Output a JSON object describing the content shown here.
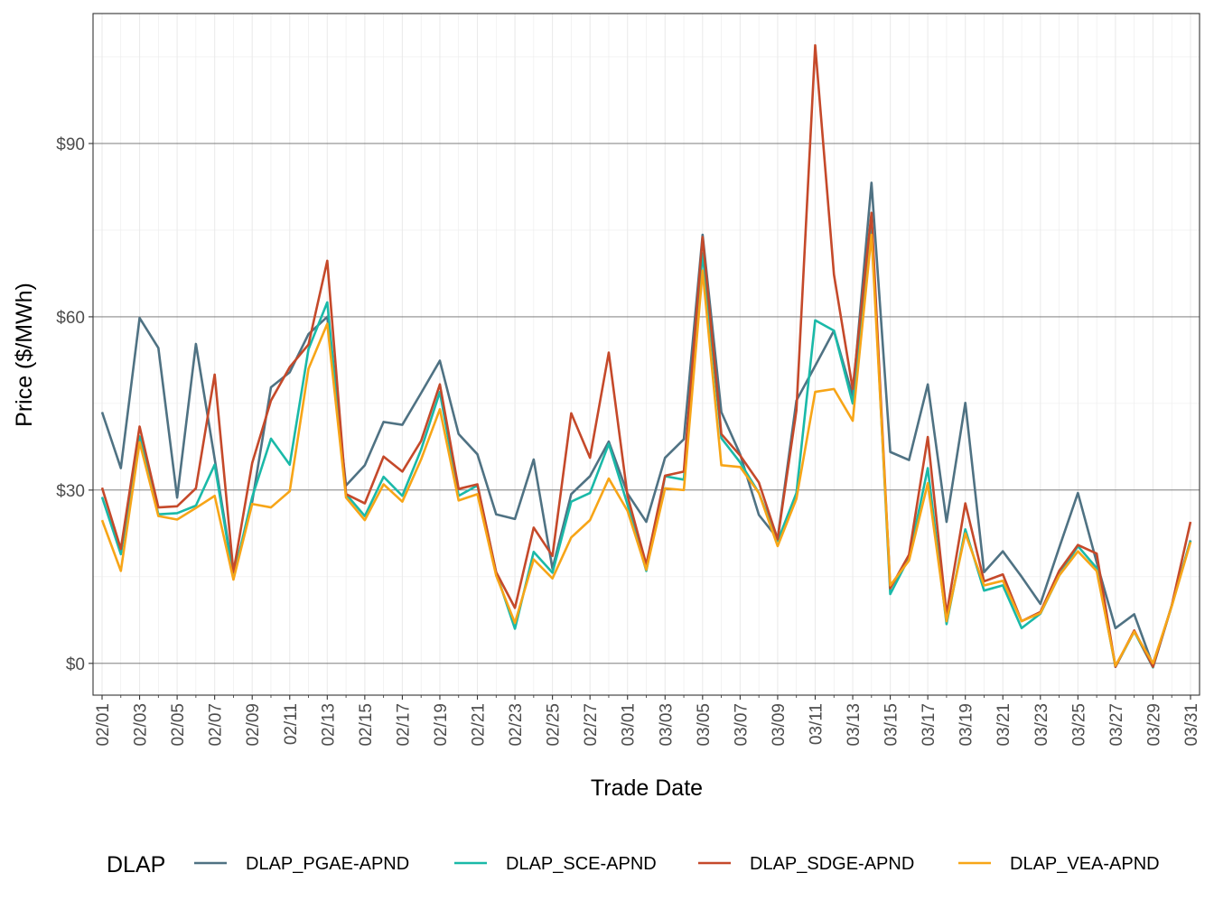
{
  "chart_data": {
    "type": "line",
    "xlabel": "Trade Date",
    "ylabel": "Price ($/MWh)",
    "legend_title": "DLAP",
    "legend_position": "bottom",
    "grid": true,
    "ylim": [
      -5.5,
      112.5
    ],
    "y_ticks": [
      0,
      30,
      60,
      90
    ],
    "y_tick_labels": [
      "$0",
      "$30",
      "$60",
      "$90"
    ],
    "x": [
      "02/01",
      "02/02",
      "02/03",
      "02/04",
      "02/05",
      "02/06",
      "02/07",
      "02/08",
      "02/09",
      "02/10",
      "02/11",
      "02/12",
      "02/13",
      "02/14",
      "02/15",
      "02/16",
      "02/17",
      "02/18",
      "02/19",
      "02/20",
      "02/21",
      "02/22",
      "02/23",
      "02/24",
      "02/25",
      "02/26",
      "02/27",
      "02/28",
      "03/01",
      "03/02",
      "03/03",
      "03/04",
      "03/05",
      "03/06",
      "03/07",
      "03/08",
      "03/09",
      "03/10",
      "03/11",
      "03/12",
      "03/13",
      "03/14",
      "03/15",
      "03/16",
      "03/17",
      "03/18",
      "03/19",
      "03/20",
      "03/21",
      "03/22",
      "03/23",
      "03/24",
      "03/25",
      "03/26",
      "03/27",
      "03/28",
      "03/29",
      "03/30",
      "03/31"
    ],
    "x_tick_labels": [
      "02/01",
      "02/03",
      "02/05",
      "02/07",
      "02/09",
      "02/11",
      "02/13",
      "02/15",
      "02/17",
      "02/19",
      "02/21",
      "02/23",
      "02/25",
      "02/27",
      "03/01",
      "03/03",
      "03/05",
      "03/07",
      "03/09",
      "03/11",
      "03/13",
      "03/15",
      "03/17",
      "03/19",
      "03/21",
      "03/23",
      "03/25",
      "03/27",
      "03/29",
      "03/31"
    ],
    "series": [
      {
        "name": "DLAP_PGAE-APND",
        "color": "#4f7283",
        "values": [
          43.5,
          33.8,
          59.8,
          54.6,
          28.7,
          55.3,
          35.4,
          15.2,
          28.0,
          47.8,
          50.4,
          57.0,
          60.0,
          30.8,
          34.3,
          41.8,
          41.3,
          46.8,
          52.4,
          39.7,
          36.2,
          25.8,
          25.0,
          35.3,
          16.4,
          29.3,
          32.4,
          38.4,
          29.4,
          24.5,
          35.6,
          38.8,
          74.2,
          43.5,
          36.2,
          25.7,
          21.6,
          45.5,
          51.5,
          57.6,
          46.3,
          83.2,
          36.6,
          35.2,
          48.3,
          24.5,
          45.1,
          15.8,
          19.4,
          15.0,
          10.3,
          20.0,
          29.5,
          17.5,
          6.1,
          8.5,
          -0.4,
          10.0,
          21.3
        ]
      },
      {
        "name": "DLAP_SCE-APND",
        "color": "#1ab9a8",
        "values": [
          28.8,
          18.9,
          39.3,
          25.8,
          26.0,
          27.3,
          34.4,
          14.8,
          28.8,
          38.9,
          34.4,
          54.4,
          62.5,
          29.3,
          25.5,
          32.3,
          29.0,
          37.0,
          47.0,
          29.0,
          30.8,
          15.7,
          6.0,
          19.3,
          15.7,
          28.0,
          29.5,
          38.0,
          27.5,
          16.0,
          32.4,
          31.8,
          71.0,
          39.0,
          34.8,
          29.5,
          21.2,
          29.5,
          59.4,
          57.6,
          45.0,
          76.3,
          12.0,
          18.3,
          33.8,
          6.8,
          23.2,
          12.6,
          13.5,
          6.1,
          8.6,
          15.2,
          20.3,
          16.5,
          -0.6,
          5.5,
          -0.7,
          10.0,
          21.2
        ]
      },
      {
        "name": "DLAP_SDGE-APND",
        "color": "#c5492a",
        "values": [
          30.4,
          19.8,
          41.0,
          27.0,
          27.2,
          30.3,
          50.0,
          15.8,
          34.7,
          45.5,
          51.3,
          55.2,
          69.7,
          29.3,
          27.7,
          35.8,
          33.2,
          38.5,
          48.3,
          30.2,
          31.0,
          15.8,
          9.6,
          23.5,
          18.6,
          43.3,
          35.6,
          53.8,
          29.0,
          17.1,
          32.5,
          33.2,
          73.8,
          39.7,
          36.0,
          31.3,
          21.5,
          43.8,
          107.0,
          67.3,
          47.5,
          78.0,
          13.0,
          18.8,
          39.2,
          8.5,
          27.7,
          14.2,
          15.4,
          7.3,
          8.9,
          16.0,
          20.5,
          19.0,
          -0.6,
          5.7,
          -0.6,
          10.0,
          24.5
        ]
      },
      {
        "name": "DLAP_VEA-APND",
        "color": "#f7a517",
        "values": [
          24.8,
          16.0,
          38.3,
          25.5,
          24.9,
          26.9,
          29.0,
          14.5,
          27.6,
          27.0,
          29.8,
          51.0,
          58.8,
          28.7,
          24.8,
          31.0,
          28.0,
          35.3,
          44.0,
          28.2,
          29.3,
          15.2,
          7.0,
          18.0,
          14.7,
          21.8,
          24.8,
          32.0,
          26.4,
          16.2,
          30.3,
          30.0,
          68.0,
          34.3,
          34.0,
          29.5,
          20.3,
          28.5,
          47.0,
          47.5,
          42.0,
          74.2,
          13.5,
          17.8,
          31.2,
          7.3,
          22.5,
          13.5,
          14.3,
          7.3,
          8.7,
          15.2,
          19.4,
          16.0,
          -0.4,
          5.5,
          0.0,
          9.9,
          21.0
        ]
      }
    ]
  }
}
